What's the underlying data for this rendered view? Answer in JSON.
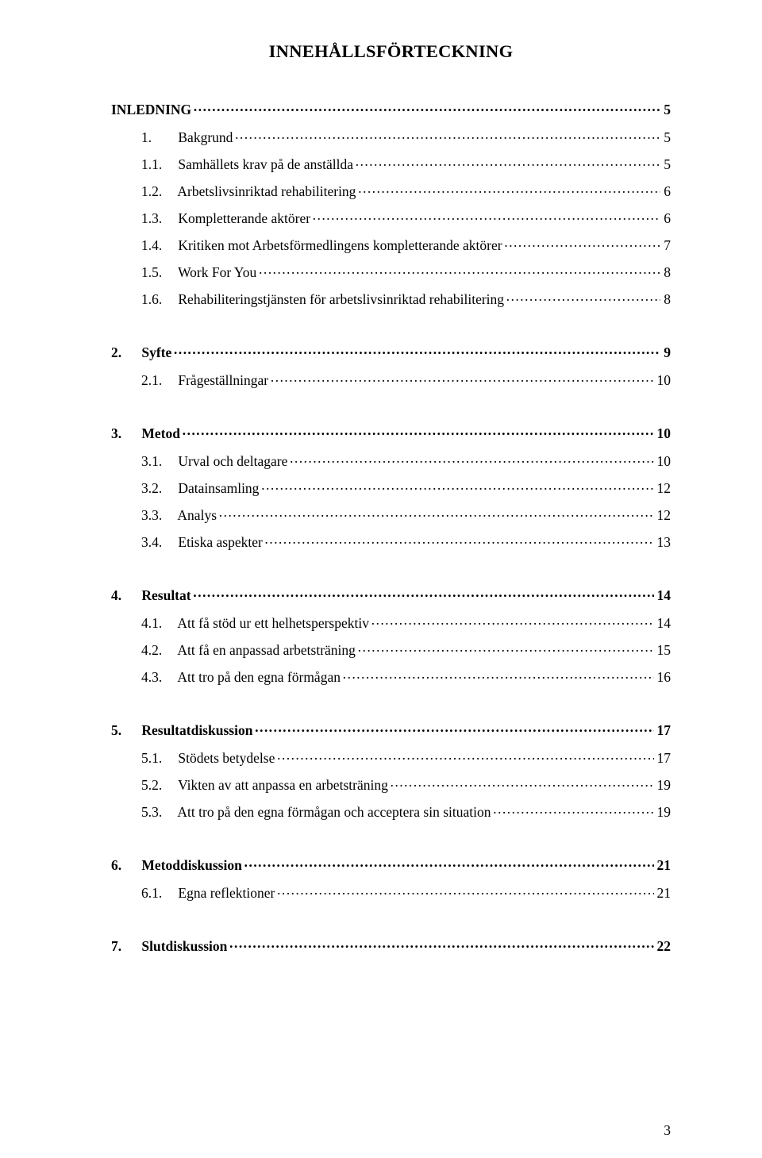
{
  "title": "INNEHÅLLSFÖRTECKNING",
  "page_number": "3",
  "colors": {
    "text": "#000000",
    "background": "#ffffff"
  },
  "typography": {
    "font_family": "Times New Roman",
    "title_fontsize": 22.5,
    "body_fontsize": 17.5
  },
  "blocks": [
    {
      "lines": [
        {
          "level": 0,
          "num": "",
          "label": "INLEDNING",
          "page": "5"
        },
        {
          "level": 1,
          "num": "1.",
          "label": "Bakgrund",
          "page": "5"
        },
        {
          "level": 1,
          "num": "1.1.",
          "label": "Samhällets krav på de anställda",
          "page": "5"
        },
        {
          "level": 1,
          "num": "1.2.",
          "label": "Arbetslivsinriktad rehabilitering",
          "page": "6"
        },
        {
          "level": 1,
          "num": "1.3.",
          "label": "Kompletterande aktörer",
          "page": "6"
        },
        {
          "level": 1,
          "num": "1.4.",
          "label": "Kritiken mot Arbetsförmedlingens kompletterande aktörer",
          "page": "7"
        },
        {
          "level": 1,
          "num": "1.5.",
          "label": "Work For You",
          "page": "8"
        },
        {
          "level": 1,
          "num": "1.6.",
          "label": "Rehabiliteringstjänsten för arbetslivsinriktad rehabilitering",
          "page": "8"
        }
      ]
    },
    {
      "lines": [
        {
          "level": 0,
          "num": "2.",
          "label": "Syfte",
          "page": "9"
        },
        {
          "level": 1,
          "num": "2.1.",
          "label": "Frågeställningar",
          "page": "10"
        }
      ]
    },
    {
      "lines": [
        {
          "level": 0,
          "num": "3.",
          "label": "Metod",
          "page": "10"
        },
        {
          "level": 1,
          "num": "3.1.",
          "label": "Urval och deltagare",
          "page": "10"
        },
        {
          "level": 1,
          "num": "3.2.",
          "label": "Datainsamling",
          "page": "12"
        },
        {
          "level": 1,
          "num": "3.3.",
          "label": "Analys",
          "page": "12"
        },
        {
          "level": 1,
          "num": "3.4.",
          "label": "Etiska aspekter",
          "page": "13"
        }
      ]
    },
    {
      "lines": [
        {
          "level": 0,
          "num": "4.",
          "label": "Resultat",
          "page": "14"
        },
        {
          "level": 1,
          "num": "4.1.",
          "label": "Att få stöd ur ett helhetsperspektiv",
          "page": "14"
        },
        {
          "level": 1,
          "num": "4.2.",
          "label": "Att få en anpassad arbetsträning",
          "page": "15"
        },
        {
          "level": 1,
          "num": "4.3.",
          "label": "Att tro på den egna förmågan",
          "page": "16"
        }
      ]
    },
    {
      "lines": [
        {
          "level": 0,
          "num": "5.",
          "label": "Resultatdiskussion",
          "page": "17"
        },
        {
          "level": 1,
          "num": "5.1.",
          "label": "Stödets betydelse",
          "page": "17"
        },
        {
          "level": 1,
          "num": "5.2.",
          "label": "Vikten av att anpassa en arbetsträning",
          "page": "19"
        },
        {
          "level": 1,
          "num": "5.3.",
          "label": "Att tro på den egna förmågan och acceptera sin situation",
          "page": "19"
        }
      ]
    },
    {
      "lines": [
        {
          "level": 0,
          "num": "6.",
          "label": "Metoddiskussion",
          "page": "21"
        },
        {
          "level": 1,
          "num": "6.1.",
          "label": "Egna reflektioner",
          "page": "21"
        }
      ]
    },
    {
      "lines": [
        {
          "level": 0,
          "num": "7.",
          "label": "Slutdiskussion",
          "page": "22"
        }
      ]
    }
  ]
}
